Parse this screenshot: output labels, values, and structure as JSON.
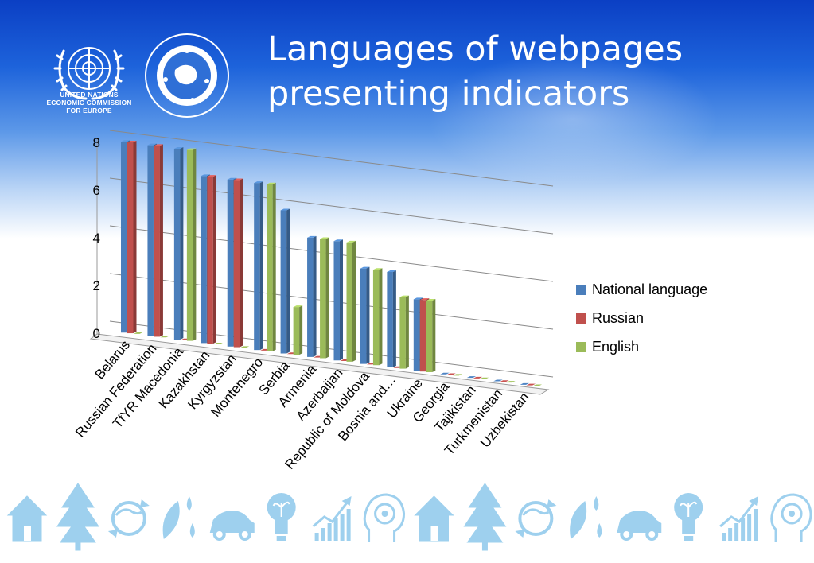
{
  "slide": {
    "title_line1": "Languages of webpages",
    "title_line2": "presenting indicators"
  },
  "logos": {
    "un_text_line1": "UNITED NATIONS",
    "un_text_line2": "ECONOMIC COMMISSION",
    "un_text_line3": "FOR EUROPE",
    "unece_emblem": "For a stronger and greener economy UNECE"
  },
  "colors": {
    "national": "#4a7ebb",
    "russian": "#c0504d",
    "english": "#9bbb59"
  },
  "chart_data": {
    "type": "bar",
    "categories": [
      "Belarus",
      "Russian Federation",
      "TfYR Macedonia",
      "Kazakhstan",
      "Kyrgyzstan",
      "Montenegro",
      "Serbia",
      "Armenia",
      "Azerbaijan",
      "Republic of Moldova",
      "Bosnia and…",
      "Ukraine",
      "Georgia",
      "Tajikistan",
      "Turkmenistan",
      "Uzbekistan"
    ],
    "series": [
      {
        "name": "National language",
        "values": [
          8,
          8,
          8,
          7,
          7,
          7,
          6,
          5,
          5,
          4,
          4,
          3,
          0,
          0,
          0,
          0
        ]
      },
      {
        "name": "Russian",
        "values": [
          8,
          8,
          0,
          7,
          7,
          0,
          0,
          0,
          0,
          0,
          0,
          3,
          0,
          0,
          0,
          0
        ]
      },
      {
        "name": "English",
        "values": [
          0,
          0,
          8,
          0,
          0,
          7,
          2,
          5,
          5,
          4,
          3,
          3,
          0,
          0,
          0,
          0
        ]
      }
    ],
    "yticks": [
      "0",
      "2",
      "4",
      "6",
      "8"
    ],
    "ylim": [
      0,
      8
    ],
    "gridlines": true,
    "legend_position": "right"
  },
  "footer": {
    "icons": [
      "house-icon",
      "tree-icon",
      "recycle-globe-icon",
      "leaf-drop-icon",
      "car-icon",
      "bulb-icon",
      "growth-chart-icon",
      "head-gear-icon",
      "house-icon",
      "tree-icon",
      "recycle-globe-icon",
      "leaf-drop-icon",
      "car-icon",
      "bulb-icon",
      "growth-chart-icon",
      "head-gear-icon"
    ]
  }
}
